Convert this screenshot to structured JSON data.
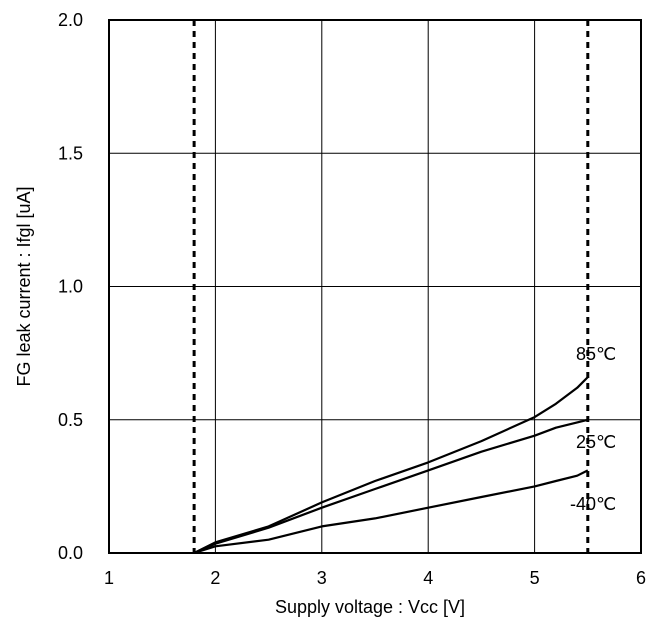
{
  "chart_data": {
    "type": "line",
    "title": "",
    "xlabel": "Supply voltage : Vcc [V]",
    "ylabel": "FG leak current : Ifgl [uA]",
    "xlim": [
      1,
      6
    ],
    "ylim": [
      0,
      2
    ],
    "x_ticks": [
      "1",
      "2",
      "3",
      "4",
      "5",
      "6"
    ],
    "y_ticks": [
      "0.0",
      "0.5",
      "1.0",
      "1.5",
      "2.0"
    ],
    "grid": true,
    "reference_lines_x": [
      1.8,
      5.5
    ],
    "series": [
      {
        "name": "85℃",
        "x": [
          1.8,
          2.0,
          2.5,
          3.0,
          3.5,
          4.0,
          4.5,
          5.0,
          5.2,
          5.4,
          5.5
        ],
        "y": [
          0.0,
          0.04,
          0.1,
          0.19,
          0.27,
          0.34,
          0.42,
          0.51,
          0.56,
          0.62,
          0.66
        ]
      },
      {
        "name": "25℃",
        "x": [
          1.8,
          2.0,
          2.5,
          3.0,
          3.5,
          4.0,
          4.5,
          5.0,
          5.2,
          5.4,
          5.5
        ],
        "y": [
          0.0,
          0.035,
          0.095,
          0.17,
          0.24,
          0.31,
          0.38,
          0.44,
          0.47,
          0.49,
          0.5
        ]
      },
      {
        "name": "-40℃",
        "x": [
          1.8,
          2.0,
          2.5,
          3.0,
          3.5,
          4.0,
          4.5,
          5.0,
          5.2,
          5.4,
          5.5
        ],
        "y": [
          0.0,
          0.025,
          0.05,
          0.1,
          0.13,
          0.17,
          0.21,
          0.25,
          0.27,
          0.29,
          0.31
        ]
      }
    ]
  }
}
